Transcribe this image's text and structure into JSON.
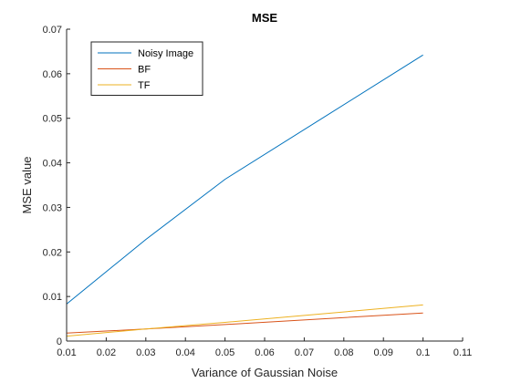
{
  "chart_data": {
    "type": "line",
    "title": "MSE",
    "xlabel": "Variance of Gaussian Noise",
    "ylabel": "MSE value",
    "xlim": [
      0.01,
      0.11
    ],
    "ylim": [
      0,
      0.07
    ],
    "xticks": [
      "0.01",
      "0.02",
      "0.03",
      "0.04",
      "0.05",
      "0.06",
      "0.07",
      "0.08",
      "0.09",
      "0.1",
      "0.11"
    ],
    "yticks": [
      "0",
      "0.01",
      "0.02",
      "0.03",
      "0.04",
      "0.05",
      "0.06",
      "0.07"
    ],
    "x": [
      0.01,
      0.03,
      0.05,
      0.1
    ],
    "series": [
      {
        "name": "Noisy Image",
        "color": "#0072BD",
        "values": [
          0.0083,
          0.0228,
          0.0363,
          0.0642
        ]
      },
      {
        "name": "BF",
        "color": "#D95319",
        "values": [
          0.0018,
          0.0027,
          0.0037,
          0.0063
        ]
      },
      {
        "name": "TF",
        "color": "#EDB120",
        "values": [
          0.0011,
          0.0027,
          0.0042,
          0.0081
        ]
      }
    ],
    "legend_position": "top-left",
    "grid": false
  }
}
